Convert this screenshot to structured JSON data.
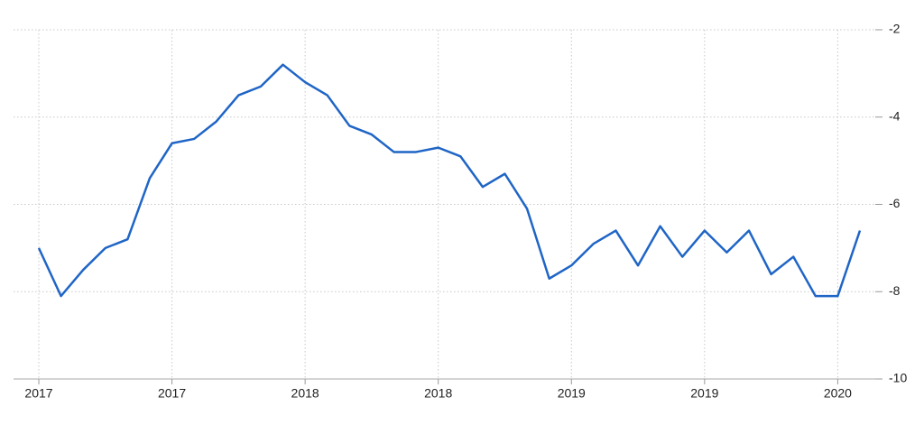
{
  "chart_data": {
    "type": "line",
    "categories": [
      "2017",
      null,
      null,
      null,
      null,
      null,
      "2017",
      null,
      null,
      null,
      null,
      null,
      "2018",
      null,
      null,
      null,
      null,
      null,
      "2018",
      null,
      null,
      null,
      null,
      null,
      "2019",
      null,
      null,
      null,
      null,
      null,
      "2019",
      null,
      null,
      null,
      null,
      null,
      "2020",
      null
    ],
    "series": [
      {
        "color": "#1f65c6",
        "values": [
          -7.0,
          -8.1,
          -7.5,
          -7.0,
          -6.8,
          -5.4,
          -4.6,
          -4.5,
          -4.1,
          -3.5,
          -3.3,
          -2.8,
          -3.2,
          -3.5,
          -4.2,
          -4.4,
          -4.8,
          -4.8,
          -4.7,
          -4.9,
          -5.6,
          -5.3,
          -6.1,
          -7.7,
          -7.4,
          -6.9,
          -6.6,
          -7.4,
          -6.5,
          -7.2,
          -6.6,
          -7.1,
          -6.6,
          -7.6,
          -7.2,
          -8.1,
          -8.1,
          -6.6
        ]
      }
    ],
    "ylim": [
      -10,
      -2
    ],
    "yticks": [
      -10,
      -8,
      -6,
      -4,
      -2
    ],
    "grid": true
  }
}
